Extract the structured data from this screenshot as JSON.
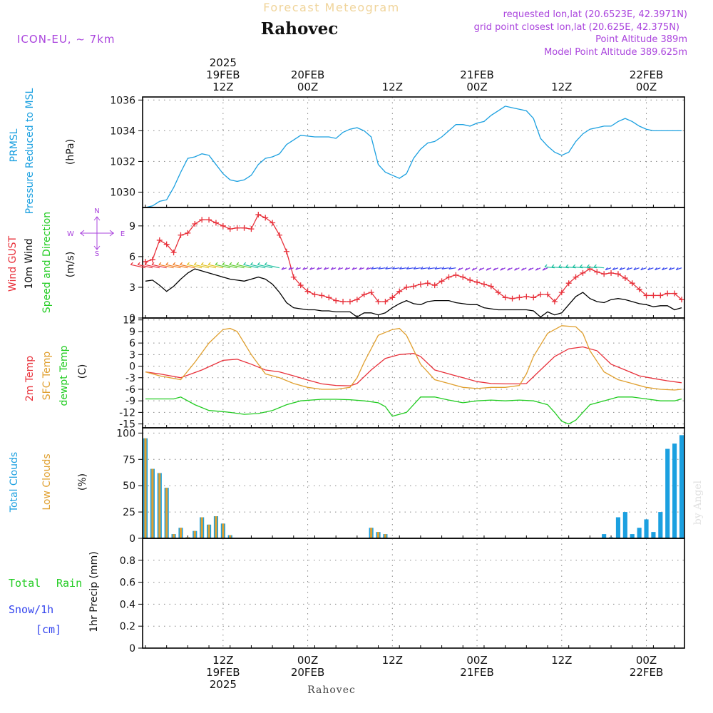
{
  "header": {
    "app_title": "Forecast Meteogram",
    "location": "Rahovec",
    "model": "ICON-EU, ~ 7km",
    "requested": "requested lon,lat (20.6523E, 42.3971N)",
    "grid_point": "grid point closest lon,lat (20.625E, 42.375N)",
    "point_altitude": "Point Altitude 389m",
    "model_altitude": "Model Point Altitude 389.625m"
  },
  "time_axis": {
    "top_labels": [
      {
        "t": 12,
        "lines": [
          "2025",
          "19FEB",
          "12Z"
        ]
      },
      {
        "t": 24,
        "lines": [
          "20FEB",
          "00Z"
        ]
      },
      {
        "t": 36,
        "lines": [
          "12Z"
        ]
      },
      {
        "t": 48,
        "lines": [
          "21FEB",
          "00Z"
        ]
      },
      {
        "t": 60,
        "lines": [
          "12Z"
        ]
      },
      {
        "t": 72,
        "lines": [
          "22FEB",
          "00Z"
        ]
      }
    ],
    "bottom_labels": [
      {
        "t": 12,
        "lines": [
          "12Z",
          "19FEB",
          "2025"
        ]
      },
      {
        "t": 24,
        "lines": [
          "00Z",
          "20FEB"
        ]
      },
      {
        "t": 36,
        "lines": [
          "12Z"
        ]
      },
      {
        "t": 48,
        "lines": [
          "00Z",
          "21FEB"
        ]
      },
      {
        "t": 60,
        "lines": [
          "12Z"
        ]
      },
      {
        "t": 72,
        "lines": [
          "00Z",
          "22FEB"
        ]
      }
    ],
    "range_hours": [
      1,
      77
    ],
    "footer_label": "Rahovec",
    "signature": "by Angel"
  },
  "colors": {
    "pressure": "#1ba0e0",
    "gust": "#e8303a",
    "wind": "#000000",
    "temp": "#e8303a",
    "sfc_temp": "#e0a030",
    "dewpoint": "#22cc22",
    "total_clouds": "#1ba0e0",
    "low_clouds": "#e0a030",
    "rain": "#22cc22",
    "snow": "#3344ee",
    "compass": "#aa44dd",
    "grid": "#888888"
  },
  "chart_data": [
    {
      "type": "line",
      "panel": "pressure",
      "labels": [
        "PRMSL",
        "Pressure Reduced to MSL",
        "(hPa)"
      ],
      "ylim": [
        1029,
        1036.2
      ],
      "yticks": [
        1030,
        1032,
        1034,
        1036
      ],
      "grid": true,
      "series": [
        {
          "name": "PRMSL",
          "x": [
            1,
            2,
            3,
            4,
            5,
            6,
            7,
            8,
            9,
            10,
            11,
            12,
            13,
            14,
            15,
            16,
            17,
            18,
            19,
            20,
            21,
            22,
            23,
            24,
            25,
            26,
            27,
            28,
            29,
            30,
            31,
            32,
            33,
            34,
            35,
            36,
            37,
            38,
            39,
            40,
            41,
            42,
            43,
            44,
            45,
            46,
            47,
            48,
            49,
            50,
            51,
            52,
            53,
            54,
            55,
            56,
            57,
            58,
            59,
            60,
            61,
            62,
            63,
            64,
            65,
            66,
            67,
            68,
            69,
            70,
            71,
            72,
            73,
            74,
            75,
            76,
            77
          ],
          "y": [
            1029.0,
            1029.1,
            1029.4,
            1029.5,
            1030.3,
            1031.3,
            1032.2,
            1032.3,
            1032.5,
            1032.4,
            1031.8,
            1031.2,
            1030.8,
            1030.7,
            1030.8,
            1031.1,
            1031.8,
            1032.2,
            1032.3,
            1032.5,
            1033.1,
            1033.4,
            1033.7,
            1033.65,
            1033.6,
            1033.6,
            1033.6,
            1033.5,
            1033.9,
            1034.1,
            1034.2,
            1034.0,
            1033.6,
            1031.8,
            1031.3,
            1031.1,
            1030.9,
            1031.2,
            1032.2,
            1032.8,
            1033.2,
            1033.3,
            1033.6,
            1034.0,
            1034.4,
            1034.4,
            1034.3,
            1034.5,
            1034.6,
            1035.0,
            1035.3,
            1035.6,
            1035.5,
            1035.4,
            1035.3,
            1034.8,
            1033.5,
            1033.0,
            1032.6,
            1032.4,
            1032.6,
            1033.3,
            1033.8,
            1034.1,
            1034.2,
            1034.3,
            1034.3,
            1034.6,
            1034.8,
            1034.6,
            1034.3,
            1034.1,
            1034.0,
            1034.0,
            1034.0,
            1034.0,
            1034.0
          ]
        }
      ]
    },
    {
      "type": "line",
      "panel": "wind",
      "labels": [
        "Wind GUST",
        "10m Wind",
        "Speed and Direction",
        "(m/s)"
      ],
      "ylim": [
        0,
        10.8
      ],
      "yticks": [
        0,
        3,
        6,
        9
      ],
      "grid": true,
      "compass": [
        "N",
        "W",
        "E",
        "S"
      ],
      "series": [
        {
          "name": "Wind GUST",
          "x": [
            1,
            2,
            3,
            4,
            5,
            6,
            7,
            8,
            9,
            10,
            11,
            12,
            13,
            14,
            15,
            16,
            17,
            18,
            19,
            20,
            21,
            22,
            23,
            24,
            25,
            26,
            27,
            28,
            29,
            30,
            31,
            32,
            33,
            34,
            35,
            36,
            37,
            38,
            39,
            40,
            41,
            42,
            43,
            44,
            45,
            46,
            47,
            48,
            49,
            50,
            51,
            52,
            53,
            54,
            55,
            56,
            57,
            58,
            59,
            60,
            61,
            62,
            63,
            64,
            65,
            66,
            67,
            68,
            69,
            70,
            71,
            72,
            73,
            74,
            75,
            76,
            77
          ],
          "y": [
            5.5,
            5.7,
            7.6,
            7.2,
            6.4,
            8.1,
            8.3,
            9.2,
            9.6,
            9.6,
            9.3,
            9.0,
            8.7,
            8.8,
            8.8,
            8.7,
            10.1,
            9.8,
            9.3,
            8.1,
            6.5,
            4.0,
            3.2,
            2.6,
            2.3,
            2.2,
            2.0,
            1.7,
            1.6,
            1.6,
            1.8,
            2.3,
            2.5,
            1.6,
            1.6,
            2.0,
            2.6,
            3.0,
            3.1,
            3.3,
            3.4,
            3.2,
            3.6,
            4.0,
            4.2,
            4.0,
            3.7,
            3.5,
            3.3,
            3.1,
            2.5,
            2.0,
            1.9,
            2.0,
            2.1,
            2.0,
            2.3,
            2.3,
            1.6,
            2.5,
            3.4,
            4.0,
            4.4,
            4.8,
            4.5,
            4.3,
            4.4,
            4.3,
            3.9,
            3.4,
            2.8,
            2.2,
            2.2,
            2.2,
            2.4,
            2.4,
            1.8
          ]
        },
        {
          "name": "10m Wind",
          "x": [
            1,
            2,
            3,
            4,
            5,
            6,
            7,
            8,
            9,
            10,
            11,
            12,
            13,
            14,
            15,
            16,
            17,
            18,
            19,
            20,
            21,
            22,
            23,
            24,
            25,
            26,
            27,
            28,
            29,
            30,
            31,
            32,
            33,
            34,
            35,
            36,
            37,
            38,
            39,
            40,
            41,
            42,
            43,
            44,
            45,
            46,
            47,
            48,
            49,
            50,
            51,
            52,
            53,
            54,
            55,
            56,
            57,
            58,
            59,
            60,
            61,
            62,
            63,
            64,
            65,
            66,
            67,
            68,
            69,
            70,
            71,
            72,
            73,
            74,
            75,
            76,
            77
          ],
          "y": [
            3.6,
            3.7,
            3.2,
            2.6,
            3.1,
            3.8,
            4.4,
            4.8,
            4.6,
            4.4,
            4.2,
            4.0,
            3.8,
            3.7,
            3.6,
            3.8,
            4.0,
            3.8,
            3.3,
            2.5,
            1.5,
            1.0,
            0.9,
            0.8,
            0.8,
            0.7,
            0.7,
            0.6,
            0.6,
            0.6,
            0.1,
            0.5,
            0.5,
            0.3,
            0.5,
            1.0,
            1.4,
            1.7,
            1.4,
            1.3,
            1.6,
            1.7,
            1.7,
            1.7,
            1.5,
            1.4,
            1.3,
            1.3,
            1.0,
            0.9,
            0.8,
            0.8,
            0.8,
            0.8,
            0.8,
            0.7,
            0.1,
            0.6,
            0.3,
            0.5,
            1.3,
            2.1,
            2.5,
            1.9,
            1.6,
            1.5,
            1.8,
            1.9,
            1.8,
            1.6,
            1.4,
            1.3,
            1.1,
            1.2,
            1.2,
            0.8,
            1.0
          ]
        }
      ]
    },
    {
      "type": "line",
      "panel": "temperature",
      "labels": [
        "2m Temp",
        "SFC Temp",
        "dewpt Temp",
        "(C)"
      ],
      "ylim": [
        -16,
        12.5
      ],
      "yticks": [
        -15,
        -12,
        -9,
        -6,
        -3,
        0,
        3,
        6,
        9,
        12
      ],
      "grid": true,
      "series": [
        {
          "name": "2m Temp",
          "x": [
            1,
            3,
            6,
            9,
            12,
            14,
            16,
            18,
            20,
            22,
            24,
            26,
            28,
            30,
            31,
            33,
            35,
            37,
            39,
            40,
            42,
            44,
            46,
            48,
            50,
            52,
            54,
            55,
            57,
            59,
            61,
            63,
            65,
            67,
            69,
            71,
            73,
            75,
            77
          ],
          "y": [
            -1.5,
            -2.0,
            -3.0,
            -1.0,
            1.5,
            1.8,
            0.5,
            -1.0,
            -1.5,
            -2.5,
            -3.6,
            -4.6,
            -5.0,
            -5.1,
            -4.5,
            -1.0,
            2.0,
            3.0,
            3.3,
            2.5,
            -1.0,
            -2.0,
            -3.0,
            -4.0,
            -4.5,
            -4.6,
            -4.6,
            -4.5,
            -1.0,
            2.5,
            4.5,
            5.0,
            4.0,
            0.5,
            -1.0,
            -2.5,
            -3.2,
            -3.8,
            -4.3
          ]
        },
        {
          "name": "SFC Temp",
          "x": [
            1,
            3,
            6,
            8,
            10,
            12,
            13,
            14,
            16,
            18,
            20,
            22,
            24,
            26,
            28,
            30,
            31,
            32,
            34,
            36,
            37,
            38,
            40,
            42,
            44,
            46,
            48,
            50,
            52,
            54,
            55,
            56,
            58,
            60,
            62,
            63,
            64,
            66,
            68,
            70,
            72,
            74,
            76,
            77
          ],
          "y": [
            -1.5,
            -2.5,
            -3.5,
            1.0,
            6.0,
            9.5,
            9.8,
            9.0,
            3.0,
            -2.0,
            -3.0,
            -4.5,
            -5.5,
            -6.0,
            -6.0,
            -5.5,
            -3.0,
            1.0,
            8.0,
            9.5,
            9.8,
            8.0,
            0.5,
            -3.5,
            -4.5,
            -5.5,
            -5.8,
            -5.5,
            -5.5,
            -5.0,
            -2.0,
            2.5,
            8.5,
            10.5,
            10.2,
            8.5,
            4.0,
            -1.5,
            -3.5,
            -4.5,
            -5.5,
            -6.0,
            -6.2,
            -6.0
          ]
        },
        {
          "name": "dewpt Temp",
          "x": [
            1,
            3,
            5,
            6,
            8,
            10,
            12,
            13,
            15,
            17,
            19,
            21,
            23,
            26,
            28,
            30,
            32,
            34,
            35,
            36,
            38,
            40,
            42,
            44,
            46,
            48,
            50,
            52,
            54,
            56,
            58,
            59,
            60,
            61,
            62,
            64,
            66,
            68,
            70,
            72,
            74,
            76,
            77
          ],
          "y": [
            -8.5,
            -8.5,
            -8.5,
            -8.0,
            -10.0,
            -11.5,
            -11.8,
            -12.0,
            -12.5,
            -12.3,
            -11.5,
            -10.0,
            -9.0,
            -8.6,
            -8.6,
            -8.7,
            -9.0,
            -9.5,
            -10.5,
            -13.0,
            -12.0,
            -8.0,
            -8.0,
            -8.8,
            -9.5,
            -9.0,
            -8.8,
            -9.0,
            -8.8,
            -9.0,
            -10.0,
            -12.0,
            -14.3,
            -15.0,
            -14.0,
            -10.0,
            -9.0,
            -8.0,
            -8.0,
            -8.5,
            -9.0,
            -9.0,
            -8.5
          ]
        }
      ]
    },
    {
      "type": "bar",
      "panel": "clouds",
      "labels": [
        "Total Clouds",
        "Low Clouds",
        "(%)"
      ],
      "ylim": [
        0,
        105
      ],
      "yticks": [
        0,
        25,
        50,
        75,
        100
      ],
      "grid": true,
      "series": [
        {
          "name": "Total Clouds",
          "x": [
            1,
            2,
            3,
            4,
            5,
            6,
            7,
            8,
            9,
            10,
            11,
            12,
            13,
            33,
            34,
            35,
            66,
            67,
            68,
            69,
            70,
            71,
            72,
            73,
            74,
            75,
            76,
            77
          ],
          "y": [
            95,
            66,
            62,
            48,
            4,
            10,
            1,
            7,
            20,
            13,
            21,
            14,
            3,
            10,
            6,
            4,
            4,
            1,
            20,
            25,
            4,
            10,
            18,
            6,
            25,
            85,
            90,
            98
          ]
        },
        {
          "name": "Low Clouds",
          "x": [
            1,
            2,
            3,
            4,
            5,
            6,
            7,
            8,
            9,
            10,
            11,
            12,
            13,
            33,
            34,
            35
          ],
          "y": [
            95,
            66,
            62,
            48,
            4,
            10,
            1,
            7,
            20,
            13,
            21,
            14,
            3,
            10,
            6,
            4
          ]
        }
      ]
    },
    {
      "type": "bar",
      "panel": "precipitation",
      "labels": [
        "Total",
        "Rain",
        "Snow/1h",
        "[cm]",
        "1hr Precip (mm)"
      ],
      "ylim": [
        0,
        1.0
      ],
      "yticks": [
        0,
        0.2,
        0.4,
        0.6,
        0.8
      ],
      "ytick_labels": [
        "0",
        "0.2",
        "0.4",
        "0.6",
        "0.8"
      ],
      "grid": true,
      "series": []
    }
  ]
}
